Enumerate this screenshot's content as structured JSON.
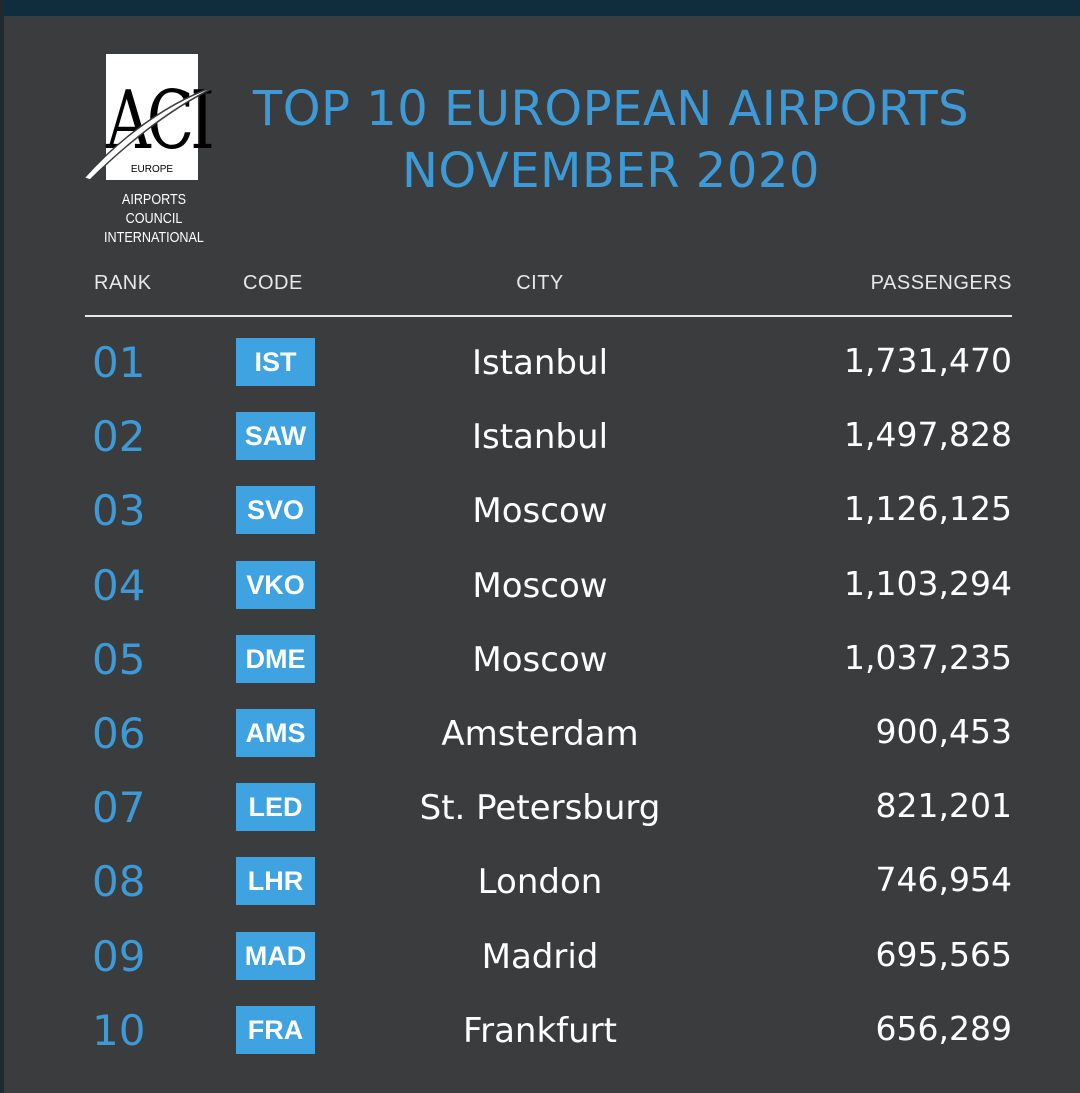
{
  "logo": {
    "letters": "ACI",
    "region": "EUROPE",
    "council_line1": "AIRPORTS COUNCIL",
    "council_line2": "INTERNATIONAL"
  },
  "chart_data": {
    "type": "table",
    "title": "TOP 10 EUROPEAN AIRPORTS",
    "subtitle": "NOVEMBER 2020",
    "columns": [
      "RANK",
      "CODE",
      "CITY",
      "PASSENGERS"
    ],
    "rows": [
      {
        "rank": "01",
        "code": "IST",
        "city": "Istanbul",
        "passengers": "1,731,470"
      },
      {
        "rank": "02",
        "code": "SAW",
        "city": "Istanbul",
        "passengers": "1,497,828"
      },
      {
        "rank": "03",
        "code": "SVO",
        "city": "Moscow",
        "passengers": "1,126,125"
      },
      {
        "rank": "04",
        "code": "VKO",
        "city": "Moscow",
        "passengers": "1,103,294"
      },
      {
        "rank": "05",
        "code": "DME",
        "city": "Moscow",
        "passengers": "1,037,235"
      },
      {
        "rank": "06",
        "code": "AMS",
        "city": "Amsterdam",
        "passengers": "900,453"
      },
      {
        "rank": "07",
        "code": "LED",
        "city": "St. Petersburg",
        "passengers": "821,201"
      },
      {
        "rank": "08",
        "code": "LHR",
        "city": "London",
        "passengers": "746,954"
      },
      {
        "rank": "09",
        "code": "MAD",
        "city": "Madrid",
        "passengers": "695,565"
      },
      {
        "rank": "10",
        "code": "FRA",
        "city": "Frankfurt",
        "passengers": "656,289"
      }
    ]
  },
  "colors": {
    "background": "#3a3c3e",
    "accent": "#3d9ad6",
    "code_badge": "#3ea3e0",
    "top_bar": "#0f2d3c",
    "text": "#ffffff"
  }
}
